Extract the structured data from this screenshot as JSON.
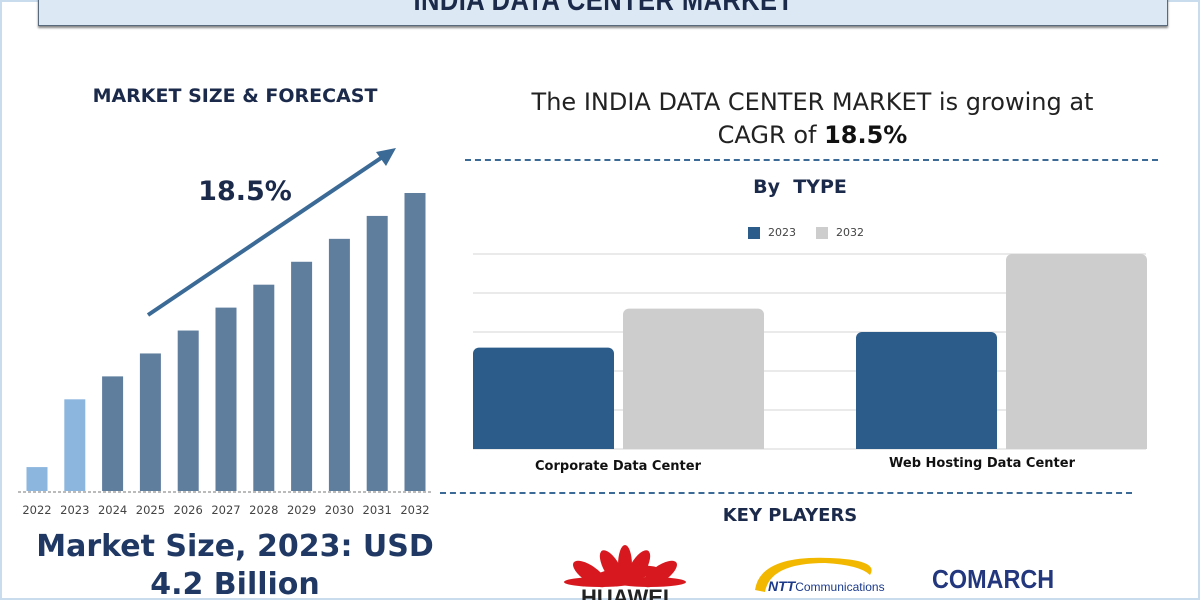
{
  "title": "INDIA DATA CENTER MARKET",
  "left": {
    "heading": "MARKET SIZE & FORECAST",
    "cagr_label": "18.5%",
    "market_size_line1": "Market Size, 2023: USD",
    "market_size_line2": "4.2 Billion"
  },
  "right": {
    "headline_part1": "The INDIA DATA CENTER MARKET is growing at",
    "headline_part2": "CAGR of ",
    "headline_cagr": "18.5%",
    "key_players_heading": "KEY PLAYERS",
    "key_players": [
      "HUAWEI",
      "NTT Communications",
      "COMARCH"
    ]
  },
  "colors": {
    "navy": "#1b2a4a",
    "bar_dark": "#2b5c8a",
    "bar_light": "#cdcdcd",
    "forecast_bar": "#5f7e9e",
    "early_bar": "#8db6df",
    "arrow": "#3b6a96"
  },
  "chart_data": [
    {
      "type": "bar",
      "title": "MARKET SIZE & FORECAST",
      "categories": [
        "2022",
        "2023",
        "2024",
        "2025",
        "2026",
        "2027",
        "2028",
        "2029",
        "2030",
        "2031",
        "2032"
      ],
      "values": [
        24,
        92,
        115,
        138,
        161,
        184,
        207,
        230,
        253,
        276,
        299
      ],
      "annotation": "18.5%",
      "ylim": [
        0,
        300
      ],
      "grid": false
    },
    {
      "type": "bar",
      "title": "By  TYPE",
      "categories": [
        "Corporate Data Center",
        "Web Hosting Data Center"
      ],
      "series": [
        {
          "name": "2023",
          "values": [
            2.6,
            3.0
          ],
          "color": "#2b5c8a"
        },
        {
          "name": "2032",
          "values": [
            3.6,
            5.0
          ],
          "color": "#cdcdcd"
        }
      ],
      "ylim": [
        0,
        5
      ],
      "grid": true,
      "legend": "top"
    }
  ]
}
